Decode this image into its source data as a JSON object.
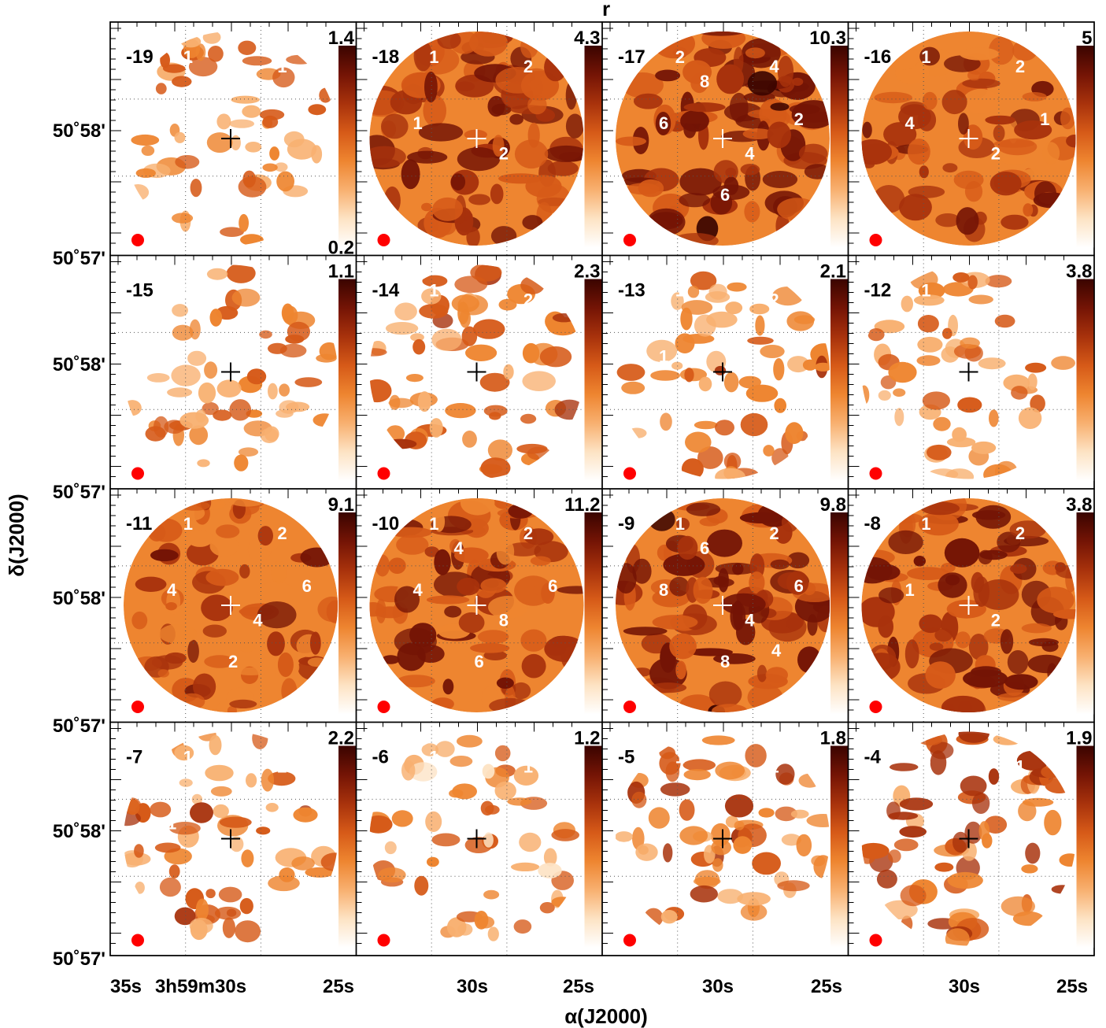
{
  "chart_data": {
    "type": "heatmap",
    "title": "r",
    "xlabel": "α(J2000)",
    "ylabel": "δ(J2000)",
    "x_ticks": [
      "35s",
      "3h59m30s",
      "25s",
      "30s",
      "25s",
      "30s",
      "25s",
      "30s",
      "25s"
    ],
    "y_ticks": [
      "50˚58'",
      "50˚57'",
      "50˚58'",
      "50˚57'",
      "50˚58'",
      "50˚57'",
      "50˚58'",
      "50˚57'"
    ],
    "colormap": [
      "#ffffff",
      "#fde3c4",
      "#f8b070",
      "#ee8530",
      "#d65a18",
      "#a8320c",
      "#741405",
      "#3a0400"
    ],
    "beam_color": "#ff0000",
    "panels": [
      {
        "velocity": "-19",
        "max": "1.4",
        "min": "0.2",
        "intensity": 0.25,
        "contour_labels": [
          "1",
          "1"
        ]
      },
      {
        "velocity": "-18",
        "max": "4.3",
        "intensity": 0.75,
        "contour_labels": [
          "1",
          "2",
          "1",
          "2"
        ]
      },
      {
        "velocity": "-17",
        "max": "10.3",
        "intensity": 0.8,
        "contour_labels": [
          "2",
          "4",
          "6",
          "4",
          "2",
          "6",
          "8"
        ]
      },
      {
        "velocity": "-16",
        "max": "5",
        "intensity": 0.6,
        "contour_labels": [
          "1",
          "2",
          "4",
          "2",
          "1"
        ]
      },
      {
        "velocity": "-15",
        "max": "1.1",
        "intensity": 0.25,
        "contour_labels": [
          "1"
        ]
      },
      {
        "velocity": "-14",
        "max": "2.3",
        "intensity": 0.35,
        "contour_labels": [
          "1",
          "2"
        ]
      },
      {
        "velocity": "-13",
        "max": "2.1",
        "intensity": 0.3,
        "contour_labels": [
          "1",
          "2",
          "1"
        ]
      },
      {
        "velocity": "-12",
        "max": "3.8",
        "intensity": 0.25,
        "contour_labels": [
          "1",
          "2",
          "1",
          "2"
        ]
      },
      {
        "velocity": "-11",
        "max": "9.1",
        "intensity": 0.55,
        "contour_labels": [
          "1",
          "2",
          "4",
          "4",
          "6",
          "2"
        ]
      },
      {
        "velocity": "-10",
        "max": "11.2",
        "intensity": 0.7,
        "contour_labels": [
          "1",
          "2",
          "4",
          "8",
          "6",
          "6",
          "4"
        ]
      },
      {
        "velocity": "-9",
        "max": "9.8",
        "intensity": 0.78,
        "contour_labels": [
          "1",
          "2",
          "8",
          "4",
          "6",
          "8",
          "6",
          "4"
        ]
      },
      {
        "velocity": "-8",
        "max": "3.8",
        "intensity": 0.75,
        "contour_labels": [
          "1",
          "2",
          "1",
          "2"
        ]
      },
      {
        "velocity": "-7",
        "max": "2.2",
        "intensity": 0.3,
        "contour_labels": [
          "1",
          "2",
          "1"
        ]
      },
      {
        "velocity": "-6",
        "max": "1.2",
        "intensity": 0.2,
        "contour_labels": [
          "1",
          "1"
        ]
      },
      {
        "velocity": "-5",
        "max": "1.8",
        "intensity": 0.35,
        "contour_labels": [
          "1",
          "1"
        ]
      },
      {
        "velocity": "-4",
        "max": "1.9",
        "intensity": 0.45,
        "contour_labels": [
          "1",
          "1"
        ]
      }
    ]
  }
}
